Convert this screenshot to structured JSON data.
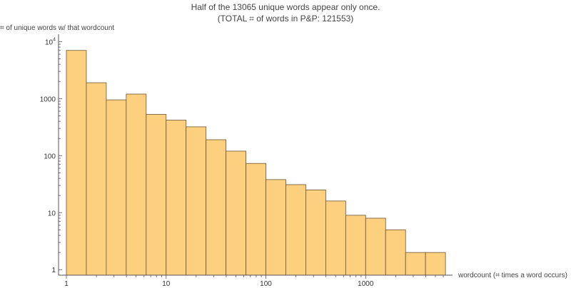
{
  "chart_data": {
    "type": "bar",
    "title_line1": "Half of the 13065 unique words appear only once.",
    "title_line2": "(TOTAL ⌗ of words in P&P: 121553)",
    "ylabel": "⌗ of unique words w/ that wordcount",
    "xlabel": "wordcount (⌗ times a word occurs)",
    "x_scale": "log",
    "y_scale": "log",
    "xlim": [
      1,
      6300
    ],
    "ylim": [
      0.8,
      12000
    ],
    "x_ticks": [
      {
        "value": 1,
        "label": "1"
      },
      {
        "value": 10,
        "label": "10"
      },
      {
        "value": 100,
        "label": "100"
      },
      {
        "value": 1000,
        "label": "1000"
      }
    ],
    "y_ticks": [
      {
        "value": 1,
        "label": "1"
      },
      {
        "value": 10,
        "label": "10"
      },
      {
        "value": 100,
        "label": "100"
      },
      {
        "value": 1000,
        "label": "1000"
      },
      {
        "value": 10000,
        "label": "10",
        "sup": "4"
      }
    ],
    "bin_edges": [
      1,
      1.585,
      2.512,
      3.981,
      6.31,
      10,
      15.85,
      25.12,
      39.81,
      63.1,
      100,
      158.5,
      251.2,
      398.1,
      631,
      1000,
      1585,
      2512,
      3981,
      6310
    ],
    "values": [
      7000,
      1900,
      950,
      1200,
      530,
      420,
      320,
      190,
      120,
      73,
      38,
      31,
      25,
      16,
      9,
      8,
      5,
      2,
      2
    ],
    "bar_fill": "#fdd080",
    "bar_stroke": "#6b5532"
  }
}
